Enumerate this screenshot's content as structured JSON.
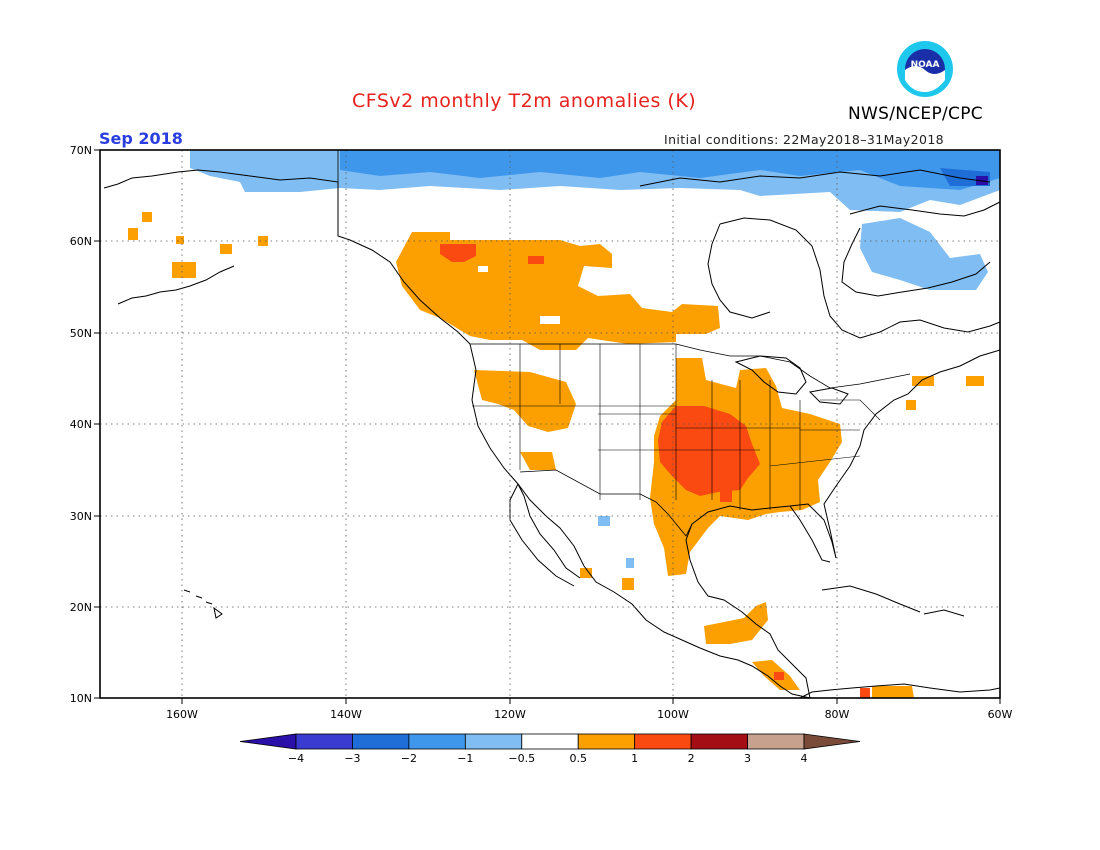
{
  "header": {
    "title": "CFSv2 monthly T2m anomalies (K)",
    "agency": "NWS/NCEP/CPC",
    "month": "Sep 2018",
    "initial_conditions": "Initial conditions: 22May2018–31May2018",
    "logo_text": "NOAA"
  },
  "map": {
    "lon_range": [
      -170,
      -60
    ],
    "lat_range": [
      10,
      70
    ],
    "lat_labels": [
      "70N",
      "60N",
      "50N",
      "40N",
      "30N",
      "20N",
      "10N"
    ],
    "lon_labels": [
      "160W",
      "140W",
      "120W",
      "100W",
      "80W",
      "60W"
    ]
  },
  "colorbar": {
    "labels": [
      "−4",
      "−3",
      "−2",
      "−1",
      "−0.5",
      "0.5",
      "1",
      "2",
      "3",
      "4"
    ],
    "colors": [
      "#2a0fa8",
      "#3a3bd0",
      "#1f6ed8",
      "#3f97ec",
      "#7fbdf2",
      "#ffffff",
      "#fba000",
      "#fa4a12",
      "#a40d14",
      "#c8a08e",
      "#7b4b3a"
    ]
  }
}
